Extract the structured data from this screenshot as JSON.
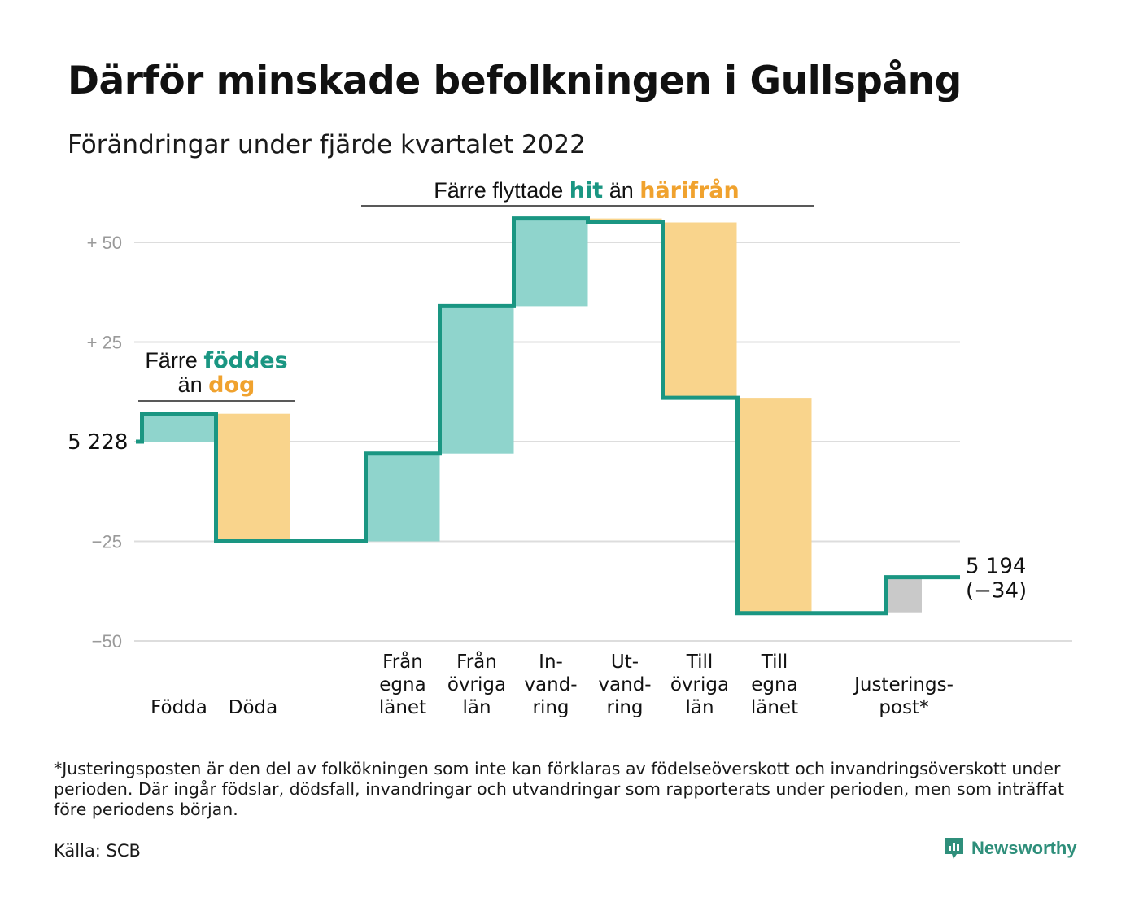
{
  "header": {
    "title": "Därför minskade befolkningen i Gullspång",
    "subtitle": "Förändringar under fjärde kvartalet 2022"
  },
  "footer": {
    "footnote": "*Justeringsposten är den del av folkökningen som inte kan förklaras av födelseöverskott och invandringsöverskott under perioden. Där ingår födslar, dödsfall, invandringar och utvandringar som rapporterats under perioden, men som inträffat före periodens början.",
    "source": "Källa: SCB",
    "brand": "Newsworthy",
    "brand_icon": "newsworthy-logo-icon"
  },
  "chart_data": {
    "type": "waterfall",
    "start_value": 5228,
    "start_label": "5 228",
    "end_value": 5194,
    "end_label": "5 194",
    "end_change_label": "(−34)",
    "yticks": [
      {
        "value": 50,
        "label": "+ 50"
      },
      {
        "value": 25,
        "label": "+ 25"
      },
      {
        "value": -25,
        "label": "−25"
      },
      {
        "value": -50,
        "label": "−50"
      }
    ],
    "ylim": [
      -53,
      56
    ],
    "steps": [
      {
        "label": [
          "Födda"
        ],
        "change": 7,
        "kind": "plus"
      },
      {
        "label": [
          "Döda"
        ],
        "change": -32,
        "kind": "minus"
      },
      {
        "label": [
          "Från",
          "egna",
          "länet"
        ],
        "change": 22,
        "kind": "plus"
      },
      {
        "label": [
          "Från",
          "övriga",
          "län"
        ],
        "change": 37,
        "kind": "plus"
      },
      {
        "label": [
          "In-",
          "vand-",
          "ring"
        ],
        "change": 22,
        "kind": "plus"
      },
      {
        "label": [
          "Ut-",
          "vand-",
          "ring"
        ],
        "change": -1,
        "kind": "minus"
      },
      {
        "label": [
          "Till",
          "övriga",
          "län"
        ],
        "change": -44,
        "kind": "minus"
      },
      {
        "label": [
          "Till",
          "egna",
          "länet"
        ],
        "change": -54,
        "kind": "minus"
      },
      {
        "label": [
          "Justerings-",
          "post*"
        ],
        "change": 9,
        "kind": "adjust"
      }
    ],
    "annotations": {
      "births": {
        "prefix": "Färre",
        "green": "föddes",
        "line2_prefix": "än",
        "orange": "dog"
      },
      "migration": {
        "prefix": "Färre flyttade",
        "green": "hit",
        "middle": "än",
        "orange": "härifrån"
      }
    },
    "colors": {
      "line": "#1a9682",
      "plus": "#8fd4cc",
      "minus": "#f9d48c",
      "adjust": "#c9c9c9",
      "green_text": "#1a9682",
      "orange_text": "#f0a22e",
      "grid": "#dddddd"
    }
  }
}
